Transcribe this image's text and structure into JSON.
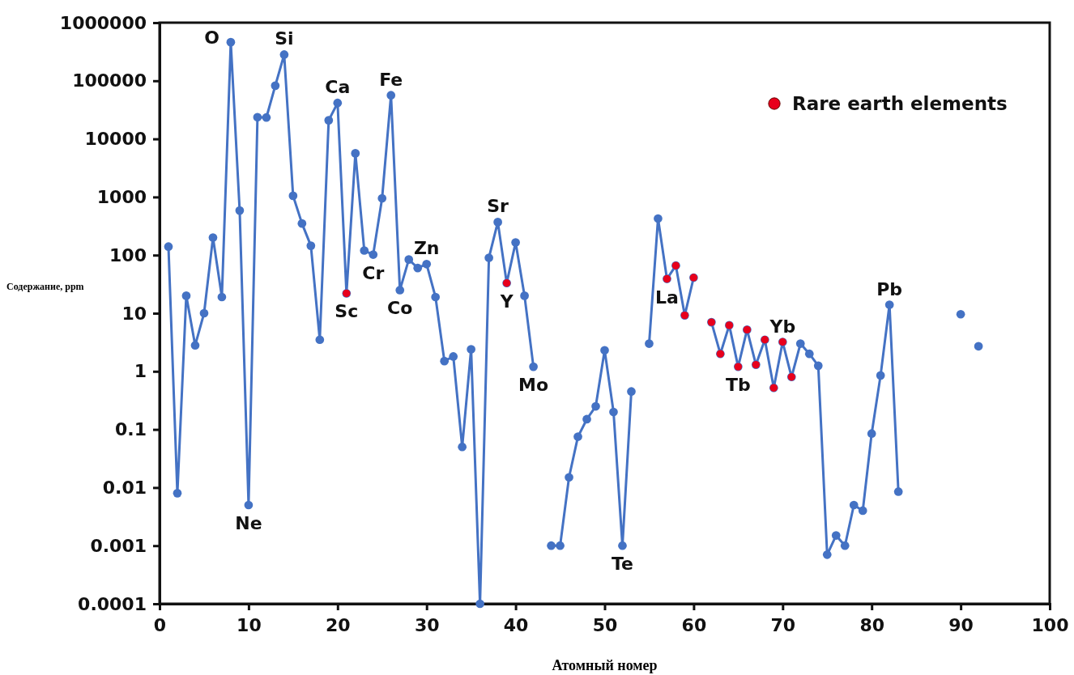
{
  "chart_data": {
    "type": "line",
    "xlabel": "Атомный номер",
    "ylabel": "Содержание, ppm",
    "log": true,
    "xlim": [
      0,
      100
    ],
    "xticks": [
      0,
      10,
      20,
      30,
      40,
      50,
      60,
      70,
      80,
      90,
      100
    ],
    "ylim": [
      0.0001,
      1000000
    ],
    "yticks": [
      0.0001,
      0.001,
      0.01,
      0.1,
      1,
      10,
      100,
      1000,
      10000,
      100000,
      1000000
    ],
    "grid": false,
    "legend": "top right",
    "marker": "circle",
    "line_style": "solid",
    "series": [
      {
        "color": "#4472c4",
        "x": [
          1,
          2,
          3,
          4,
          5,
          6,
          7,
          8,
          9,
          10,
          11,
          12,
          13,
          14,
          15,
          16,
          17,
          18,
          19,
          20,
          21,
          22,
          23,
          24,
          25,
          26,
          27,
          28,
          29,
          30,
          31,
          32,
          33,
          34,
          35,
          36,
          37,
          38,
          39,
          40,
          41,
          42,
          43,
          44,
          45,
          46,
          47,
          48,
          49,
          50,
          51,
          52,
          53,
          54,
          55,
          56,
          57,
          58,
          59,
          60,
          61,
          62,
          63,
          64,
          65,
          66,
          67,
          68,
          69,
          70,
          71,
          72,
          73,
          74,
          75,
          76,
          77,
          78,
          79,
          80,
          81,
          82,
          83,
          84,
          85,
          86,
          87,
          88,
          89,
          90,
          91,
          92
        ],
        "values": [
          140,
          0.008,
          20,
          2.8,
          10,
          200,
          19,
          461000,
          585,
          0.005,
          23600,
          23300,
          82300,
          282000,
          1050,
          350,
          145,
          3.5,
          20900,
          41500,
          22,
          5650,
          120,
          102,
          950,
          56300,
          25,
          84,
          60,
          70,
          19,
          1.5,
          1.8,
          0.05,
          2.4,
          0.0001,
          90,
          370,
          33,
          165,
          20,
          1.2,
          null,
          0.001,
          0.001,
          0.015,
          0.075,
          0.15,
          0.25,
          2.3,
          0.2,
          0.001,
          0.45,
          null,
          3,
          425,
          39,
          66,
          9.2,
          41,
          null,
          7,
          2,
          6.2,
          1.2,
          5.2,
          1.3,
          3.5,
          0.52,
          3.2,
          0.8,
          3,
          2,
          1.25,
          0.0007,
          0.0015,
          0.001,
          0.005,
          0.004,
          0.085,
          0.85,
          14,
          0.0085,
          null,
          null,
          null,
          null,
          null,
          null,
          9.6,
          null,
          2.7
        ]
      },
      {
        "type": "scatter",
        "name": "Rare earth elements",
        "color": "#e8001c",
        "x": [
          21,
          39,
          57,
          58,
          59,
          60,
          62,
          63,
          64,
          65,
          66,
          67,
          68,
          69,
          70,
          71
        ],
        "values": [
          22,
          33,
          39,
          66,
          9.2,
          41,
          7,
          2,
          6.2,
          1.2,
          5.2,
          1.3,
          3.5,
          0.52,
          3.2,
          0.8
        ]
      }
    ],
    "annotations": [
      {
        "text": "O",
        "x": 8,
        "y": 461000
      },
      {
        "text": "Si",
        "x": 14,
        "y": 282000
      },
      {
        "text": "Ca",
        "x": 20,
        "y": 41500
      },
      {
        "text": "Fe",
        "x": 26,
        "y": 56300
      },
      {
        "text": "Ne",
        "x": 10,
        "y": 0.005
      },
      {
        "text": "Sc",
        "x": 21,
        "y": 22
      },
      {
        "text": "Cr",
        "x": 24,
        "y": 102
      },
      {
        "text": "Co",
        "x": 27,
        "y": 25
      },
      {
        "text": "Zn",
        "x": 30,
        "y": 70
      },
      {
        "text": "Sr",
        "x": 38,
        "y": 370
      },
      {
        "text": "Y",
        "x": 39,
        "y": 33
      },
      {
        "text": "Mo",
        "x": 42,
        "y": 1.2
      },
      {
        "text": "Te",
        "x": 52,
        "y": 0.001
      },
      {
        "text": "La",
        "x": 57,
        "y": 39
      },
      {
        "text": "Tb",
        "x": 65,
        "y": 1.2
      },
      {
        "text": "Yb",
        "x": 70,
        "y": 3.2
      },
      {
        "text": "Pb",
        "x": 82,
        "y": 14
      }
    ]
  }
}
